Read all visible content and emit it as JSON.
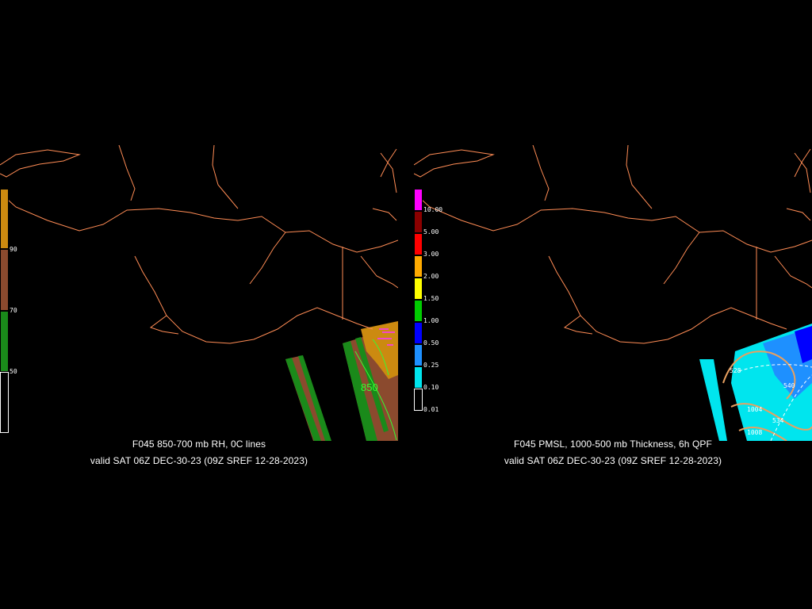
{
  "left_panel": {
    "title": "F045 850-700 mb RH, 0C lines",
    "subtitle": "valid SAT 06Z DEC-30-23 (09Z SREF 12-28-2023)",
    "contour_label": "850",
    "legend": {
      "labels": [
        "90",
        "70",
        "50"
      ],
      "colors": [
        "#cc8a10",
        "#8b4a2e",
        "#1a8a1a",
        "#000000"
      ]
    }
  },
  "right_panel": {
    "title": "F045 PMSL, 1000-500 mb Thickness, 6h QPF",
    "subtitle": "valid SAT 06Z DEC-30-23 (09Z SREF 12-28-2023)",
    "contour_labels": [
      "528",
      "540",
      "1004",
      "1008",
      "534"
    ],
    "legend": {
      "labels": [
        "10.00",
        "5.00",
        "3.00",
        "2.00",
        "1.50",
        "1.00",
        "0.50",
        "0.25",
        "0.10",
        "0.01"
      ],
      "colors": [
        "#ff00ff",
        "#8b0000",
        "#ff0000",
        "#ffaa00",
        "#ffff00",
        "#00cc00",
        "#0000ff",
        "#1e90ff",
        "#00e5ee",
        "#000000"
      ]
    }
  },
  "colors": {
    "background": "#000000",
    "coastline": "#ff8c55",
    "rh_brown": "#8b4a2e",
    "rh_green": "#1a8a1a",
    "qpf_cyan": "#00e5ee",
    "qpf_blue": "#1e90ff",
    "contour_green": "#33ff33",
    "contour_orange": "#e8a060"
  }
}
